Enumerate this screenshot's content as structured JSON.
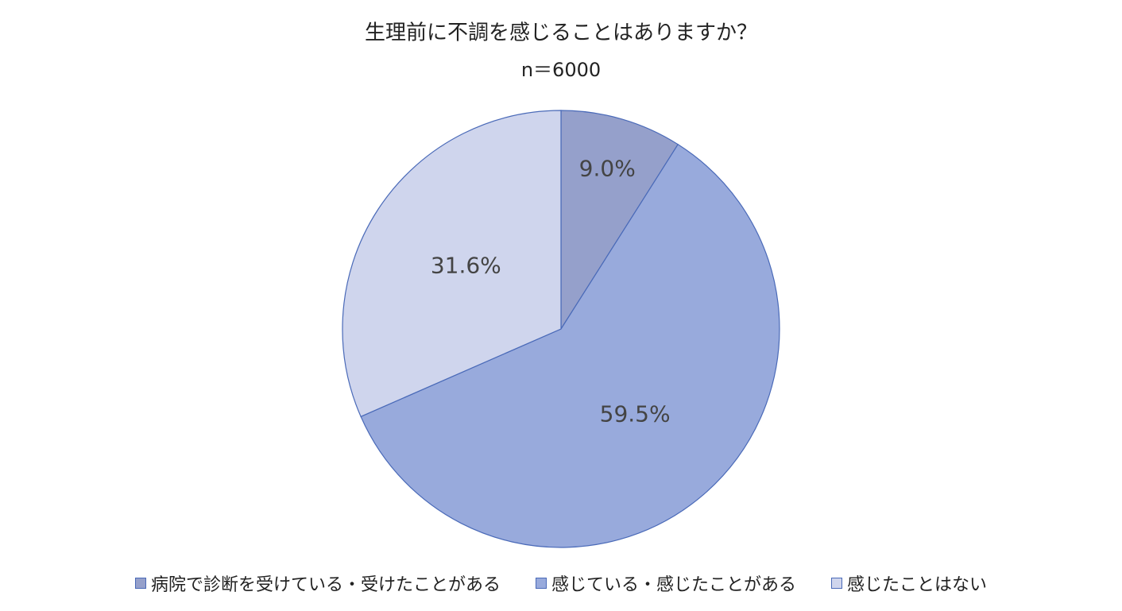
{
  "chart_data": {
    "type": "pie",
    "title": "生理前に不調を感じることはありますか？",
    "subtitle": "n＝6000",
    "categories": [
      "病院で診断を受けている・受けたことがある",
      "感じている・感じたことがある",
      "感じたことはない"
    ],
    "values": [
      9.0,
      59.5,
      31.6
    ],
    "value_labels": [
      "9.0%",
      "59.5%",
      "31.6%"
    ],
    "colors": [
      "#95a0cb",
      "#98aadc",
      "#cfd5ed"
    ]
  }
}
